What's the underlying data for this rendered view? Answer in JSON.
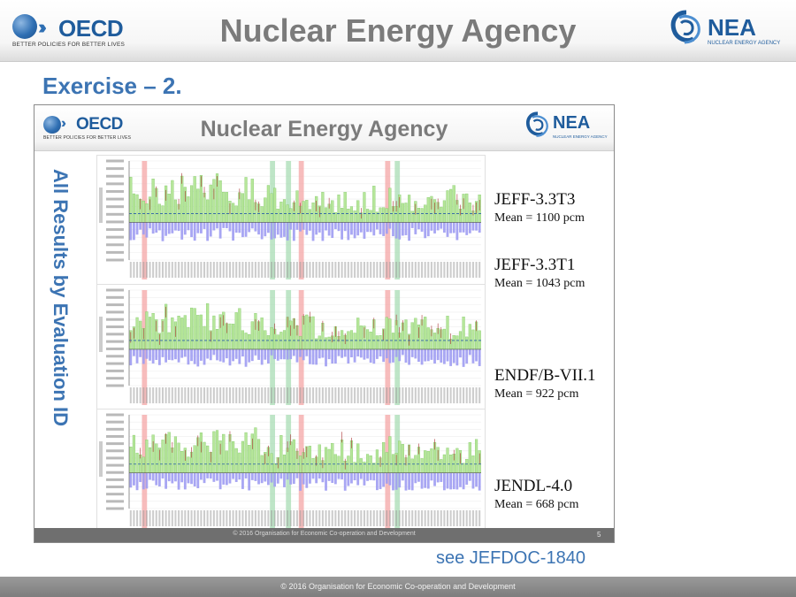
{
  "header": {
    "oecd_logo_text": "OECD",
    "oecd_tagline": "BETTER POLICIES FOR BETTER LIVES",
    "title": "Nuclear Energy Agency",
    "nea_logo_text": "NEA",
    "nea_tagline": "NUCLEAR ENERGY AGENCY"
  },
  "slide": {
    "heading": "Exercise – 2.",
    "reference": "see JEFDOC-1840"
  },
  "embedded_slide": {
    "oecd_logo_text": "OECD",
    "oecd_tagline": "BETTER POLICIES FOR BETTER LIVES",
    "title": "Nuclear Energy Agency",
    "nea_logo_text": "NEA",
    "nea_tagline": "NUCLEAR ENERGY AGENCY",
    "vertical_label": "All Results by Evaluation ID",
    "libraries": [
      {
        "name": "JEFF-3.3T3",
        "mean": "Mean = 1100 pcm"
      },
      {
        "name": "JEFF-3.3T1",
        "mean": "Mean = 1043 pcm"
      },
      {
        "name": "ENDF/B-VII.1",
        "mean": "Mean = 922 pcm"
      },
      {
        "name": "JENDL-4.0",
        "mean": "Mean = 668 pcm"
      }
    ],
    "footer_text": "© 2016 Organisation for Economic Co-operation and Development",
    "page_number": "5"
  },
  "footer": {
    "text": "© 2016 Organisation for Economic Co-operation and Development"
  },
  "colors": {
    "accent": "#3c74b3",
    "title_grey": "#7b7b7b",
    "bar_positive": "#b6e69a",
    "bar_negative": "#9f9cf2",
    "highlight_red": "#f4a6a6",
    "highlight_green": "#a8dcb4",
    "footer_grey": "#7d7d7d"
  }
}
